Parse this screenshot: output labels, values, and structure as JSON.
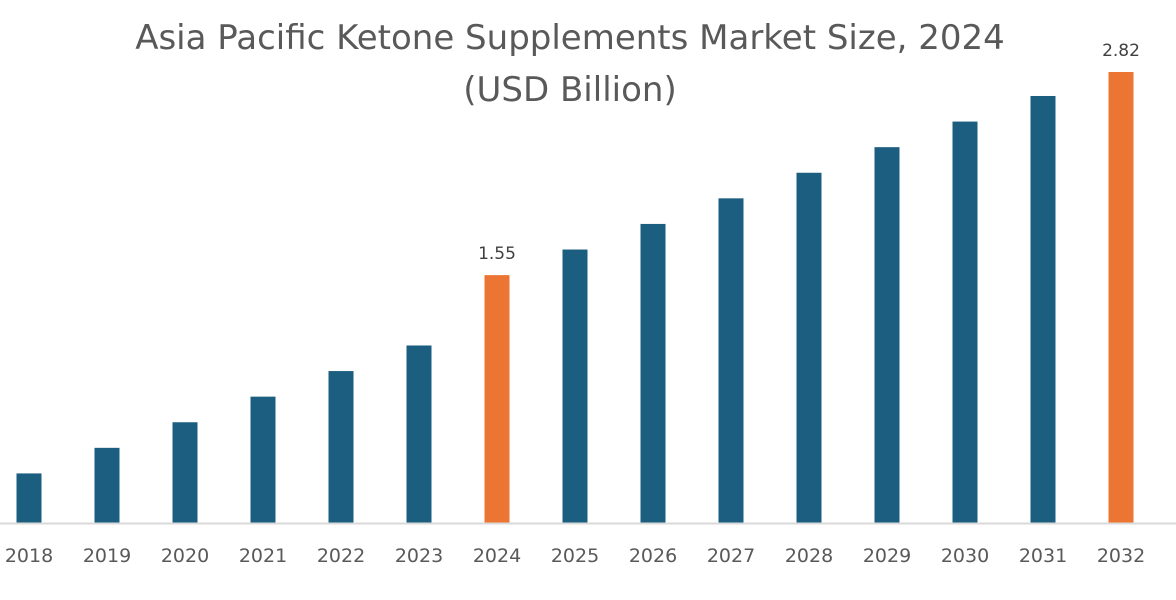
{
  "chart_data": {
    "type": "bar",
    "title": "Asia Pacific Ketone Supplements Market Size, 2024",
    "subtitle": "(USD Billion)",
    "xlabel": "",
    "ylabel": "",
    "categories": [
      "2018",
      "2019",
      "2020",
      "2021",
      "2022",
      "2023",
      "2024",
      "2025",
      "2026",
      "2027",
      "2028",
      "2029",
      "2030",
      "2031",
      "2032"
    ],
    "values": [
      0.31,
      0.47,
      0.63,
      0.79,
      0.95,
      1.11,
      1.55,
      1.71,
      1.87,
      2.03,
      2.19,
      2.35,
      2.51,
      2.67,
      2.82
    ],
    "data_labels": {
      "2024": "1.55",
      "2032": "2.82"
    },
    "highlight": [
      "2024",
      "2032"
    ],
    "ylim": [
      0,
      2.82
    ],
    "grid": false,
    "legend": "none",
    "colors": {
      "bar": "#1b5e80",
      "highlight": "#ed7534",
      "axis": "#d9d9d9"
    }
  }
}
